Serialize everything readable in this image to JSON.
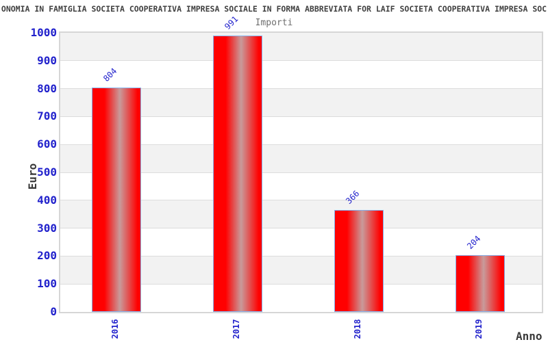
{
  "chart_data": {
    "type": "bar",
    "title": "ONOMIA IN FAMIGLIA SOCIETA COOPERATIVA IMPRESA SOCIALE IN FORMA ABBREVIATA FOR LAIF SOCIETA COOPERATIVA IMPRESA SOC",
    "subtitle": "Importi",
    "categories": [
      "2016",
      "2017",
      "2018",
      "2019"
    ],
    "values": [
      804,
      991,
      366,
      204
    ],
    "xlabel": "Anno",
    "ylabel": "Euro",
    "ylim": [
      0,
      1000
    ],
    "ytick_step": 100,
    "grid": "horizontal-bands-alternating",
    "legend": "none",
    "colors": {
      "bar_fill": "#ff0000",
      "bar_highlight": "#c89b9b",
      "bar_border": "#84b0ea",
      "axis_text": "#2222cc",
      "title_text": "#404040",
      "subtitle_text": "#6e6e6e",
      "band_shade": "#f2f2f2",
      "band_light": "#ffffff",
      "gridline": "#dcdcdc",
      "plot_border": "#d6d6d6"
    }
  }
}
